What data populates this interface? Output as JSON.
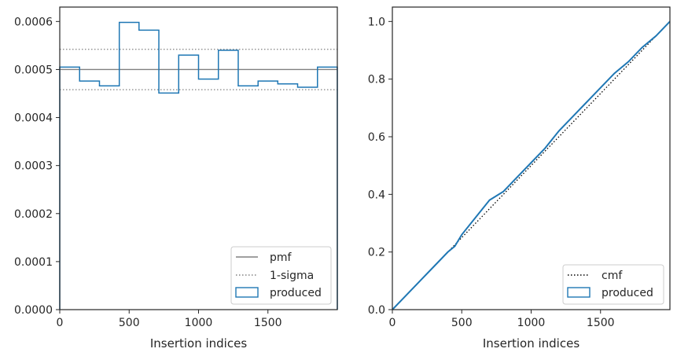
{
  "chart_data": [
    {
      "type": "line",
      "xlabel": "Insertion indices",
      "ylabel": "",
      "xlim": [
        0,
        2000
      ],
      "ylim": [
        0,
        0.00063
      ],
      "xticks": [
        0,
        500,
        1000,
        1500
      ],
      "xtick_labels": [
        "0",
        "500",
        "1000",
        "1500"
      ],
      "yticks": [
        0,
        0.0001,
        0.0002,
        0.0003,
        0.0004,
        0.0005,
        0.0006
      ],
      "ytick_labels": [
        "0.0000",
        "0.0001",
        "0.0002",
        "0.0003",
        "0.0004",
        "0.0005",
        "0.0006"
      ],
      "legend_position": "lower-right",
      "series": [
        {
          "name": "pmf",
          "style": "solid",
          "color": "#808080",
          "x": [
            0,
            2000
          ],
          "y": [
            0.0005,
            0.0005
          ]
        },
        {
          "name": "1-sigma",
          "style": "dotted",
          "color": "#808080",
          "x": [
            0,
            2000
          ],
          "y": [
            0.000542,
            0.000542
          ]
        },
        {
          "name": "1-sigma",
          "style": "dotted",
          "color": "#808080",
          "x": [
            0,
            2000
          ],
          "y": [
            0.000458,
            0.000458
          ]
        },
        {
          "name": "produced",
          "style": "step",
          "color": "#1f77b4",
          "bin_edges": [
            0,
            143,
            286,
            429,
            571,
            714,
            857,
            1000,
            1143,
            1286,
            1429,
            1571,
            1714,
            1857,
            2000
          ],
          "values": [
            0.000505,
            0.000476,
            0.000466,
            0.000598,
            0.000582,
            0.000451,
            0.00053,
            0.00048,
            0.00054,
            0.000466,
            0.000476,
            0.00047,
            0.000463,
            0.000505
          ]
        }
      ]
    },
    {
      "type": "line",
      "xlabel": "Insertion indices",
      "ylabel": "",
      "xlim": [
        0,
        2000
      ],
      "ylim": [
        0,
        1.05
      ],
      "xticks": [
        0,
        500,
        1000,
        1500
      ],
      "xtick_labels": [
        "0",
        "500",
        "1000",
        "1500"
      ],
      "yticks": [
        0,
        0.2,
        0.4,
        0.6,
        0.8,
        1.0
      ],
      "ytick_labels": [
        "0.0",
        "0.2",
        "0.4",
        "0.6",
        "0.8",
        "1.0"
      ],
      "legend_position": "lower-right",
      "series": [
        {
          "name": "cmf",
          "style": "dotted",
          "color": "#000000",
          "x": [
            0,
            2000
          ],
          "y": [
            0,
            1.0
          ]
        },
        {
          "name": "produced",
          "style": "solid",
          "color": "#1f77b4",
          "x": [
            0,
            100,
            200,
            300,
            400,
            450,
            500,
            600,
            700,
            800,
            900,
            1000,
            1100,
            1200,
            1300,
            1400,
            1500,
            1600,
            1700,
            1800,
            1900,
            2000
          ],
          "y": [
            0,
            0.05,
            0.1,
            0.15,
            0.2,
            0.22,
            0.26,
            0.32,
            0.38,
            0.41,
            0.46,
            0.51,
            0.56,
            0.62,
            0.67,
            0.72,
            0.77,
            0.82,
            0.86,
            0.91,
            0.95,
            1.0
          ]
        }
      ]
    }
  ],
  "legend_left": {
    "items": [
      "pmf",
      "1-sigma",
      "produced"
    ]
  },
  "legend_right": {
    "items": [
      "cmf",
      "produced"
    ]
  }
}
